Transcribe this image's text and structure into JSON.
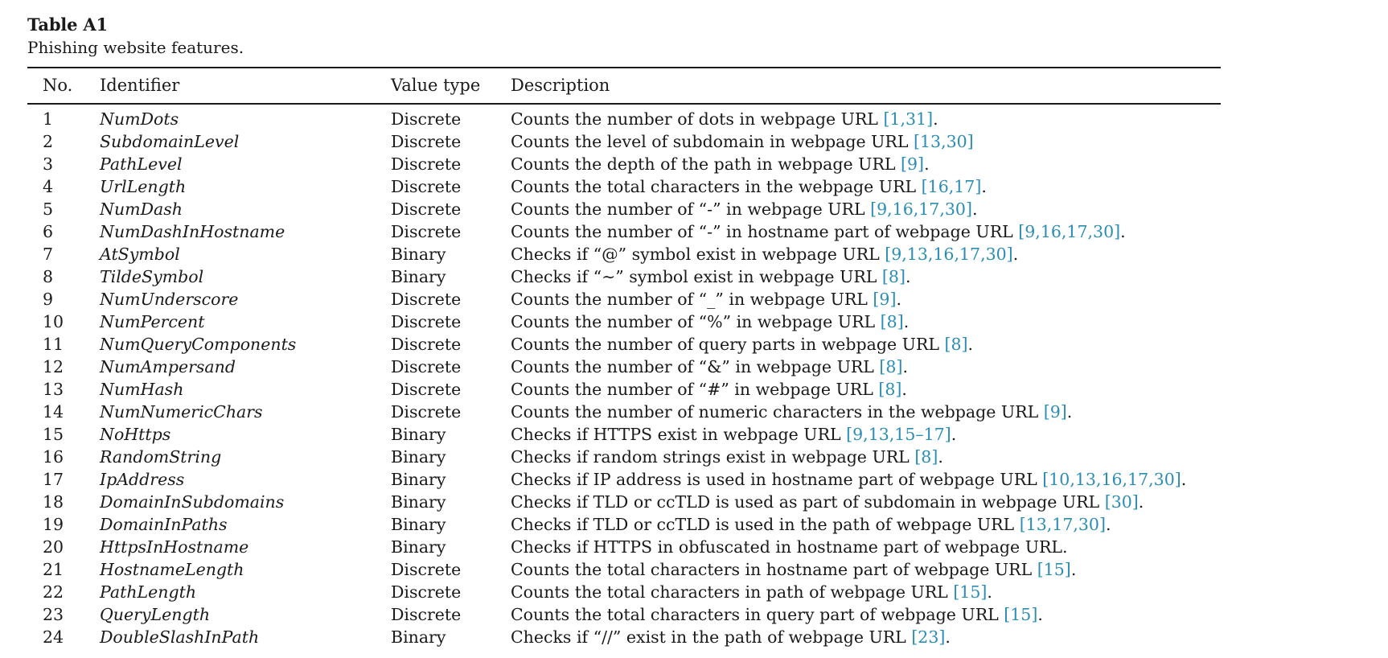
{
  "caption": {
    "label": "Table A1",
    "text": "Phishing website features."
  },
  "columns": {
    "no": "No.",
    "identifier": "Identifier",
    "value_type": "Value type",
    "description": "Description"
  },
  "rows": [
    {
      "no": "1",
      "identifier": "NumDots",
      "type": "Discrete",
      "desc": "Counts the number of dots in webpage URL ",
      "ref": "[1,31]",
      "tail": "."
    },
    {
      "no": "2",
      "identifier": "SubdomainLevel",
      "type": "Discrete",
      "desc": "Counts the level of subdomain in webpage URL ",
      "ref": "[13,30]",
      "tail": ""
    },
    {
      "no": "3",
      "identifier": "PathLevel",
      "type": "Discrete",
      "desc": "Counts the depth of the path in webpage URL ",
      "ref": "[9]",
      "tail": "."
    },
    {
      "no": "4",
      "identifier": "UrlLength",
      "type": "Discrete",
      "desc": "Counts the total characters in the webpage URL ",
      "ref": "[16,17]",
      "tail": "."
    },
    {
      "no": "5",
      "identifier": "NumDash",
      "type": "Discrete",
      "desc": "Counts the number of “-” in webpage URL ",
      "ref": "[9,16,17,30]",
      "tail": "."
    },
    {
      "no": "6",
      "identifier": "NumDashInHostname",
      "type": "Discrete",
      "desc": "Counts the number of “-” in hostname part of webpage URL ",
      "ref": "[9,16,17,30]",
      "tail": "."
    },
    {
      "no": "7",
      "identifier": "AtSymbol",
      "type": "Binary",
      "desc": "Checks if “@” symbol exist in webpage URL ",
      "ref": "[9,13,16,17,30]",
      "tail": "."
    },
    {
      "no": "8",
      "identifier": "TildeSymbol",
      "type": "Binary",
      "desc": "Checks if “∼” symbol exist in webpage URL ",
      "ref": "[8]",
      "tail": "."
    },
    {
      "no": "9",
      "identifier": "NumUnderscore",
      "type": "Discrete",
      "desc": "Counts the number of “_” in webpage URL ",
      "ref": "[9]",
      "tail": "."
    },
    {
      "no": "10",
      "identifier": "NumPercent",
      "type": "Discrete",
      "desc": "Counts the number of “%” in webpage URL ",
      "ref": "[8]",
      "tail": "."
    },
    {
      "no": "11",
      "identifier": "NumQueryComponents",
      "type": "Discrete",
      "desc": "Counts the number of query parts in webpage URL ",
      "ref": "[8]",
      "tail": "."
    },
    {
      "no": "12",
      "identifier": "NumAmpersand",
      "type": "Discrete",
      "desc": "Counts the number of “&” in webpage URL ",
      "ref": "[8]",
      "tail": "."
    },
    {
      "no": "13",
      "identifier": "NumHash",
      "type": "Discrete",
      "desc": "Counts the number of “#” in webpage URL ",
      "ref": "[8]",
      "tail": "."
    },
    {
      "no": "14",
      "identifier": "NumNumericChars",
      "type": "Discrete",
      "desc": "Counts the number of numeric characters in the webpage URL ",
      "ref": "[9]",
      "tail": "."
    },
    {
      "no": "15",
      "identifier": "NoHttps",
      "type": "Binary",
      "desc": "Checks if HTTPS exist in webpage URL ",
      "ref": "[9,13,15–17]",
      "tail": "."
    },
    {
      "no": "16",
      "identifier": "RandomString",
      "type": "Binary",
      "desc": "Checks if random strings exist in webpage URL ",
      "ref": "[8]",
      "tail": "."
    },
    {
      "no": "17",
      "identifier": "IpAddress",
      "type": "Binary",
      "desc": "Checks if IP address is used in hostname part of webpage URL ",
      "ref": "[10,13,16,17,30]",
      "tail": "."
    },
    {
      "no": "18",
      "identifier": "DomainInSubdomains",
      "type": "Binary",
      "desc": "Checks if TLD or ccTLD is used as part of subdomain in webpage URL ",
      "ref": "[30]",
      "tail": "."
    },
    {
      "no": "19",
      "identifier": "DomainInPaths",
      "type": "Binary",
      "desc": "Checks if TLD or ccTLD is used in the path of webpage URL ",
      "ref": "[13,17,30]",
      "tail": "."
    },
    {
      "no": "20",
      "identifier": "HttpsInHostname",
      "type": "Binary",
      "desc": "Checks if HTTPS in obfuscated in hostname part of webpage URL.",
      "ref": "",
      "tail": ""
    },
    {
      "no": "21",
      "identifier": "HostnameLength",
      "type": "Discrete",
      "desc": "Counts the total characters in hostname part of webpage URL ",
      "ref": "[15]",
      "tail": "."
    },
    {
      "no": "22",
      "identifier": "PathLength",
      "type": "Discrete",
      "desc": "Counts the total characters in path of webpage URL ",
      "ref": "[15]",
      "tail": "."
    },
    {
      "no": "23",
      "identifier": "QueryLength",
      "type": "Discrete",
      "desc": "Counts the total characters in query part of webpage URL ",
      "ref": "[15]",
      "tail": "."
    },
    {
      "no": "24",
      "identifier": "DoubleSlashInPath",
      "type": "Binary",
      "desc": "Checks if “//” exist in the path of webpage URL ",
      "ref": "[23]",
      "tail": "."
    }
  ]
}
